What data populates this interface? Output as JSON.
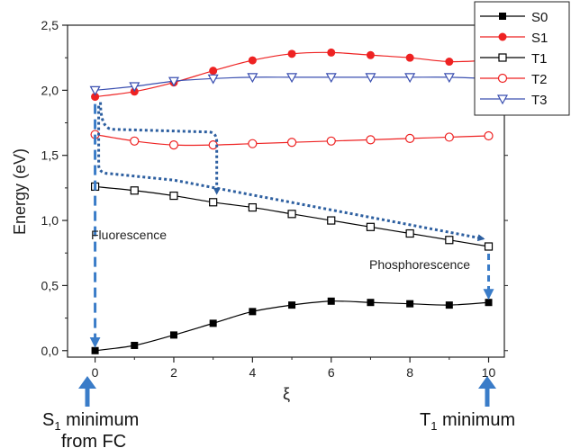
{
  "chart_data": {
    "type": "line",
    "title": "",
    "xlabel": "ξ",
    "ylabel": "Energy (eV)",
    "xlim": [
      -0.7,
      10.4
    ],
    "ylim": [
      -0.05,
      2.5
    ],
    "xticks": [
      "0",
      "2",
      "4",
      "6",
      "8",
      "10"
    ],
    "yticks": [
      "0,0",
      "0,5",
      "1,0",
      "1,5",
      "2,0",
      "2,5"
    ],
    "x": [
      0,
      1,
      2,
      3,
      4,
      5,
      6,
      7,
      8,
      9,
      10
    ],
    "series": [
      {
        "name": "S0",
        "color": "#000000",
        "marker": "filled-square",
        "values": [
          0.0,
          0.04,
          0.12,
          0.21,
          0.3,
          0.35,
          0.38,
          0.37,
          0.36,
          0.35,
          0.37
        ]
      },
      {
        "name": "S1",
        "color": "#ee2222",
        "marker": "filled-circle",
        "values": [
          1.95,
          1.99,
          2.06,
          2.15,
          2.23,
          2.28,
          2.29,
          2.27,
          2.25,
          2.22,
          2.23
        ]
      },
      {
        "name": "T1",
        "color": "#000000",
        "marker": "open-square",
        "values": [
          1.26,
          1.23,
          1.19,
          1.14,
          1.1,
          1.05,
          1.0,
          0.95,
          0.9,
          0.85,
          0.8
        ]
      },
      {
        "name": "T2",
        "color": "#ee2222",
        "marker": "open-circle",
        "values": [
          1.66,
          1.61,
          1.58,
          1.58,
          1.59,
          1.6,
          1.61,
          1.62,
          1.63,
          1.64,
          1.65
        ]
      },
      {
        "name": "T3",
        "color": "#3a4fb0",
        "marker": "open-triangle-down",
        "values": [
          2.0,
          2.03,
          2.07,
          2.09,
          2.1,
          2.1,
          2.1,
          2.1,
          2.1,
          2.1,
          2.09
        ]
      }
    ],
    "legend": {
      "placement": "top-right"
    },
    "annotations": {
      "fluorescence": "Fluorescence",
      "phosphorescence": "Phosphorescence",
      "left_marker": {
        "line1": "S",
        "sub": "1",
        "rest": " minimum",
        "line2": "from FC"
      },
      "right_marker": {
        "line1": "T",
        "sub": "1",
        "rest": " minimum"
      }
    },
    "arrow_color": "#3a7cc8",
    "dotted_color": "#2d5fa0"
  }
}
